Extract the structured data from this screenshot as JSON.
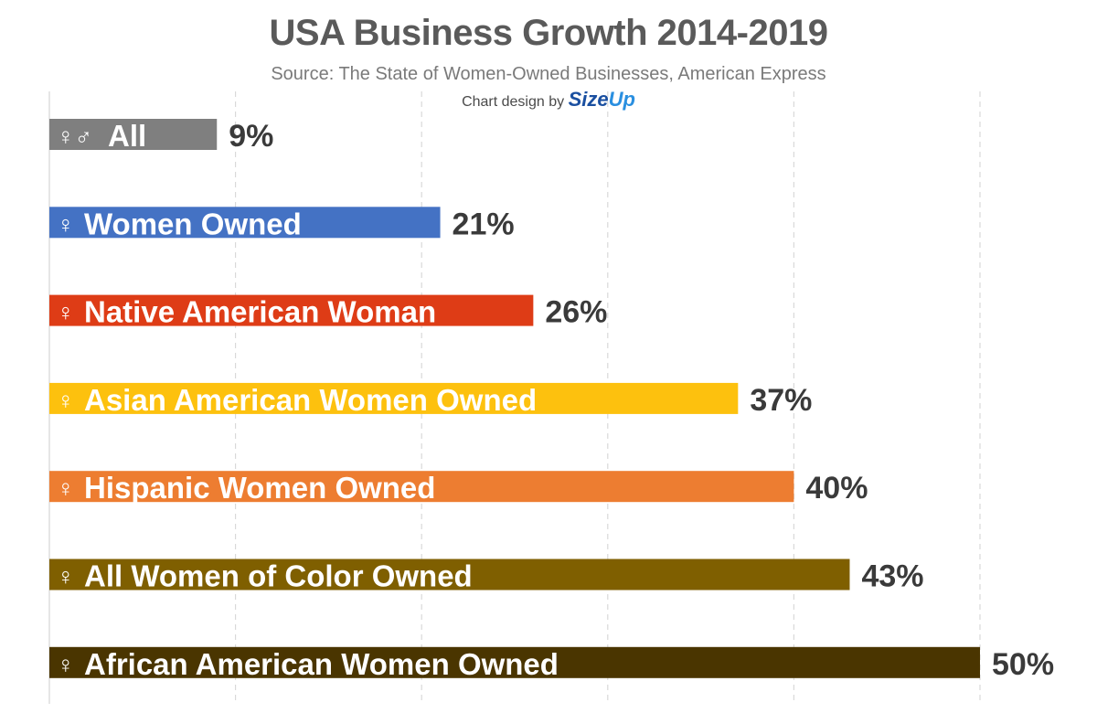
{
  "title": "USA Business Growth 2014-2019",
  "subtitle": "Source: The State of Women-Owned Businesses, American Express",
  "credit": {
    "prefix": "Chart design by",
    "brand_main": "Size",
    "brand_accent": "Up"
  },
  "chart_data": {
    "type": "bar",
    "orientation": "horizontal",
    "title": "USA Business Growth 2014-2019",
    "xlabel": "",
    "ylabel": "",
    "xlim": [
      0,
      50
    ],
    "grid": true,
    "legend": "none",
    "categories": [
      "All",
      "Women Owned",
      "Native American Woman",
      "Asian American Women Owned",
      "Hispanic Women Owned",
      "All Women of Color Owned",
      "African American Women Owned"
    ],
    "icons": [
      "♀♂",
      "♀",
      "♀",
      "♀",
      "♀",
      "♀",
      "♀"
    ],
    "values": [
      9,
      21,
      26,
      37,
      40,
      43,
      50
    ],
    "value_labels": [
      "9%",
      "21%",
      "26%",
      "37%",
      "40%",
      "43%",
      "50%"
    ],
    "colors": [
      "#7f7f7f",
      "#4472c4",
      "#de3c16",
      "#fdc10e",
      "#ed7d31",
      "#7f5f00",
      "#4a3500"
    ]
  }
}
